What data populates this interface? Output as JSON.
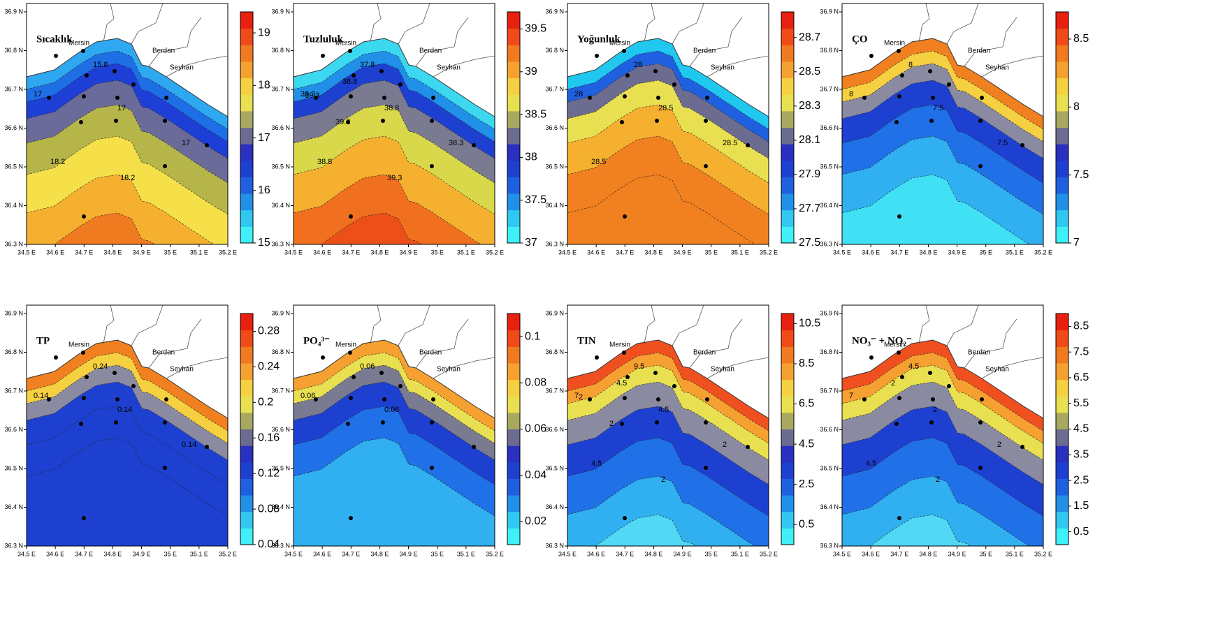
{
  "axes": {
    "xticks": [
      "34.5 E",
      "34.6 E",
      "34.7 E",
      "34.8 E",
      "34.9 E",
      "35 E",
      "35.1 E",
      "35.2 E"
    ],
    "yticks": [
      "36.3 N",
      "36.4 N",
      "36.5 N",
      "36.6 N",
      "36.7 N",
      "36.8 N",
      "36.9 N"
    ]
  },
  "places": [
    "Mersin",
    "Berdan",
    "Seyhan"
  ],
  "panels": [
    {
      "title": "Sıcaklık",
      "colorbar": {
        "range": [
          15,
          19.4
        ],
        "ticks": [
          15,
          16,
          17,
          18,
          19
        ]
      },
      "contour_labels": [
        "15.8",
        "17",
        "17",
        "17",
        "18.2",
        "18.2"
      ]
    },
    {
      "title": "Tuzluluk",
      "colorbar": {
        "range": [
          37,
          39.7
        ],
        "ticks": [
          37,
          37.5,
          38,
          38.5,
          39,
          39.5
        ]
      },
      "contour_labels": [
        "37.8",
        "38.3",
        "38.8",
        "38.3",
        "38.8",
        "39.3",
        "38.8",
        "39.3",
        "39.3"
      ]
    },
    {
      "title": "Yoğunluk",
      "colorbar": {
        "range": [
          27.5,
          28.85
        ],
        "ticks": [
          27.5,
          27.7,
          27.9,
          28.1,
          28.3,
          28.5,
          28.7
        ]
      },
      "contour_labels": [
        "28",
        "28",
        "28.5",
        "28.5",
        "28.5"
      ]
    },
    {
      "title": "ÇO",
      "colorbar": {
        "range": [
          7,
          8.7
        ],
        "ticks": [
          7,
          7.5,
          8,
          8.5
        ]
      },
      "contour_labels": [
        "8",
        "8",
        "7.5",
        "7.5"
      ]
    },
    {
      "title": "TP",
      "colorbar": {
        "range": [
          0.04,
          0.3
        ],
        "ticks": [
          0.04,
          0.08,
          0.12,
          0.16,
          0.2,
          0.24,
          0.28
        ]
      },
      "contour_labels": [
        "0.24",
        "0.14",
        "0.14",
        "0.14"
      ]
    },
    {
      "title": "PO₄³⁻",
      "colorbar": {
        "range": [
          0.01,
          0.11
        ],
        "ticks": [
          0.02,
          0.04,
          0.06,
          0.08,
          0.1
        ]
      },
      "contour_labels": [
        "0.06",
        "0.06",
        "0.06"
      ]
    },
    {
      "title": "TIN",
      "colorbar": {
        "range": [
          -0.5,
          11
        ],
        "ticks": [
          0.5,
          2.5,
          4.5,
          6.5,
          8.5,
          10.5
        ]
      },
      "contour_labels": [
        "9.5",
        "7",
        "4.5",
        "2",
        "4.5",
        "2",
        "4.5",
        "2",
        "2"
      ]
    },
    {
      "title": "NO₃⁻ + NO₂⁻",
      "colorbar": {
        "range": [
          0,
          9
        ],
        "ticks": [
          0.5,
          1.5,
          2.5,
          3.5,
          4.5,
          5.5,
          6.5,
          7.5,
          8.5
        ]
      },
      "contour_labels": [
        "4.5",
        "7",
        "2",
        "2",
        "4.5",
        "2",
        "2"
      ]
    }
  ]
}
